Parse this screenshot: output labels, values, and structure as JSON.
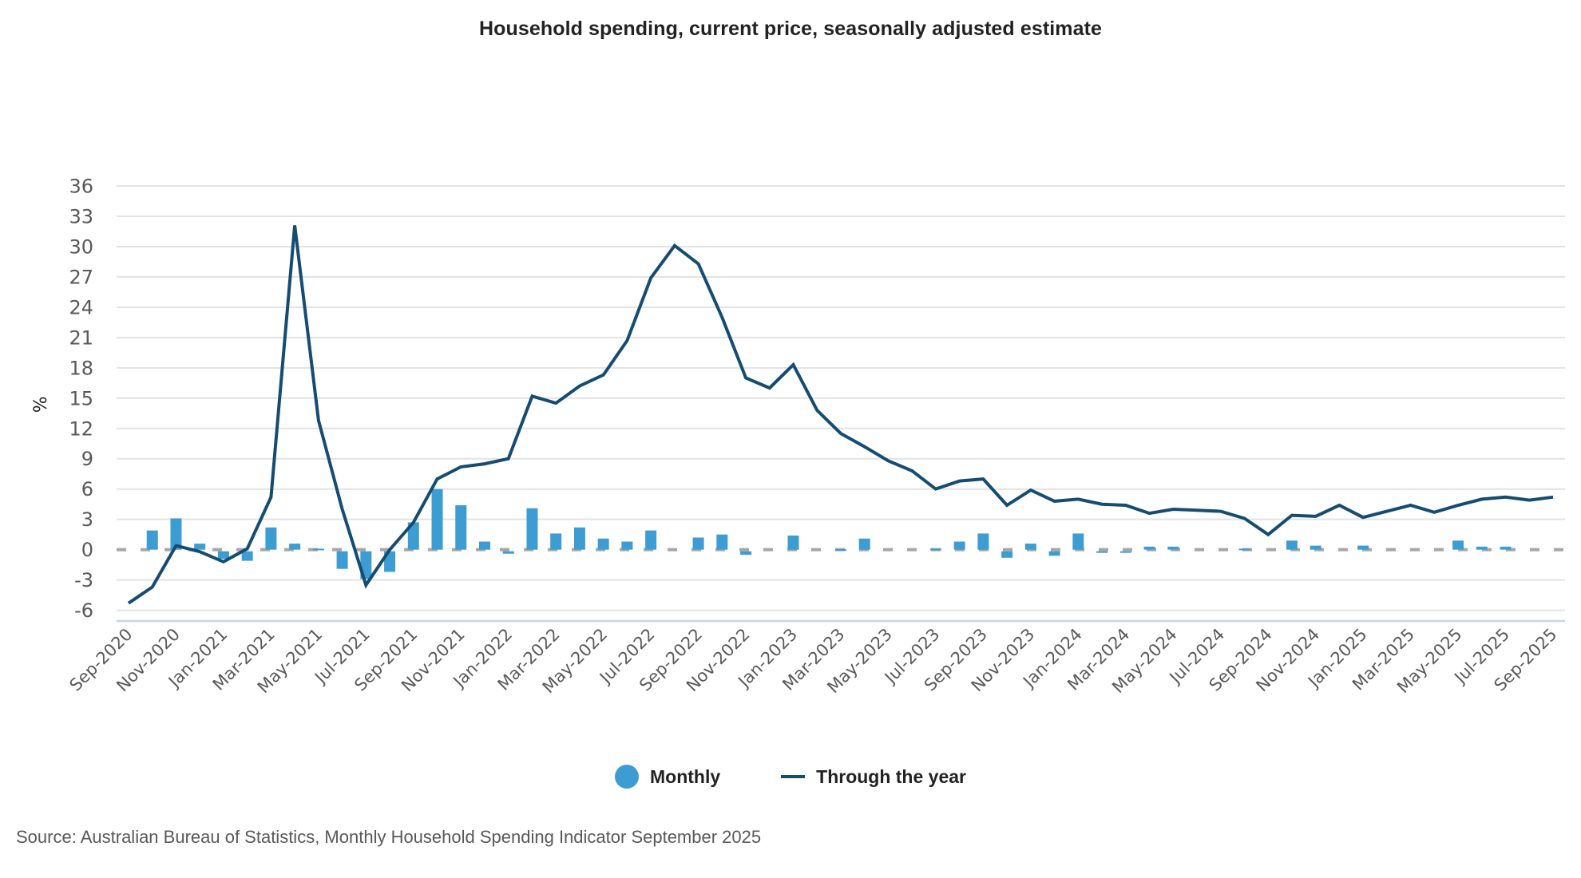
{
  "chart_data": {
    "type": "bar+line",
    "title": "Household spending, current price, seasonally adjusted estimate",
    "xlabel": "",
    "ylabel": "%",
    "ylim": [
      -6,
      36
    ],
    "yticks": [
      36,
      33,
      30,
      27,
      24,
      21,
      18,
      15,
      12,
      9,
      6,
      3,
      0,
      -3,
      -6
    ],
    "grid": true,
    "legend_position": "bottom-center",
    "x": [
      "Sep-2020",
      "Oct-2020",
      "Nov-2020",
      "Dec-2020",
      "Jan-2021",
      "Feb-2021",
      "Mar-2021",
      "Apr-2021",
      "May-2021",
      "Jun-2021",
      "Jul-2021",
      "Aug-2021",
      "Sep-2021",
      "Oct-2021",
      "Nov-2021",
      "Dec-2021",
      "Jan-2022",
      "Feb-2022",
      "Mar-2022",
      "Apr-2022",
      "May-2022",
      "Jun-2022",
      "Jul-2022",
      "Aug-2022",
      "Sep-2022",
      "Oct-2022",
      "Nov-2022",
      "Dec-2022",
      "Jan-2023",
      "Feb-2023",
      "Mar-2023",
      "Apr-2023",
      "May-2023",
      "Jun-2023",
      "Jul-2023",
      "Aug-2023",
      "Sep-2023",
      "Oct-2023",
      "Nov-2023",
      "Dec-2023",
      "Jan-2024",
      "Feb-2024",
      "Mar-2024",
      "Apr-2024",
      "May-2024",
      "Jun-2024",
      "Jul-2024",
      "Aug-2024",
      "Sep-2024",
      "Oct-2024",
      "Nov-2024",
      "Dec-2024",
      "Jan-2025",
      "Feb-2025",
      "Mar-2025",
      "Apr-2025",
      "May-2025",
      "Jun-2025",
      "Jul-2025",
      "Aug-2025",
      "Sep-2025"
    ],
    "xtick_labels": [
      "Sep-2020",
      "Nov-2020",
      "Jan-2021",
      "Mar-2021",
      "May-2021",
      "Jul-2021",
      "Sep-2021",
      "Nov-2021",
      "Jan-2022",
      "Mar-2022",
      "May-2022",
      "Jul-2022",
      "Sep-2022",
      "Nov-2022",
      "Jan-2023",
      "Mar-2023",
      "May-2023",
      "Jul-2023",
      "Sep-2023",
      "Nov-2023",
      "Jan-2024",
      "Mar-2024",
      "May-2024",
      "Jul-2024",
      "Sep-2024",
      "Nov-2024",
      "Jan-2025",
      "Mar-2025",
      "May-2025",
      "Jul-2025",
      "Sep-2025"
    ],
    "series": [
      {
        "name": "Monthly",
        "type": "bar",
        "color": "#3d9dd3",
        "values": [
          0,
          1.9,
          3.1,
          0.6,
          -0.9,
          -1.1,
          2.2,
          0.6,
          0.1,
          -1.9,
          -2.9,
          -2.2,
          2.7,
          6.0,
          4.4,
          0.8,
          -0.4,
          4.1,
          1.6,
          2.2,
          1.1,
          0.8,
          1.9,
          0,
          1.2,
          1.5,
          -0.5,
          0,
          1.4,
          0,
          0.05,
          1.1,
          0,
          0,
          0.1,
          0.8,
          1.6,
          -0.8,
          0.6,
          -0.6,
          1.6,
          -0.2,
          -0.2,
          0.3,
          0.3,
          0,
          0,
          0.1,
          0,
          0.9,
          0.4,
          0,
          0.4,
          0,
          0,
          0,
          0.9,
          0.3,
          0.3,
          0,
          0
        ]
      },
      {
        "name": "Through the year",
        "type": "line",
        "color": "#154c72",
        "values": [
          -5.3,
          -3.7,
          0.4,
          -0.2,
          -1.2,
          0.1,
          5.2,
          32.1,
          12.8,
          4.0,
          -3.5,
          0.0,
          2.7,
          7.0,
          8.2,
          8.5,
          9.0,
          15.2,
          14.5,
          16.2,
          17.3,
          20.7,
          26.9,
          30.1,
          28.3,
          23.0,
          17.0,
          16.0,
          18.3,
          13.8,
          11.5,
          10.2,
          8.8,
          7.8,
          6.0,
          6.8,
          7.0,
          4.4,
          5.9,
          4.8,
          5.0,
          4.5,
          4.4,
          3.6,
          4.0,
          3.9,
          3.8,
          3.1,
          1.5,
          3.4,
          3.3,
          4.4,
          3.2,
          3.8,
          4.4,
          3.7,
          4.4,
          5.0,
          5.2,
          4.9,
          5.2
        ]
      }
    ]
  },
  "legend": {
    "items": [
      {
        "label": "Monthly",
        "color": "#3d9dd3",
        "marker": "circle"
      },
      {
        "label": "Through the year",
        "color": "#154c72",
        "marker": "line"
      }
    ]
  },
  "colors": {
    "gridline": "#e3e3e3",
    "zero_line": "#a6a6a6",
    "axis_line": "#c9d5ea"
  },
  "source": "Source: Australian Bureau of Statistics, Monthly Household Spending Indicator September 2025"
}
